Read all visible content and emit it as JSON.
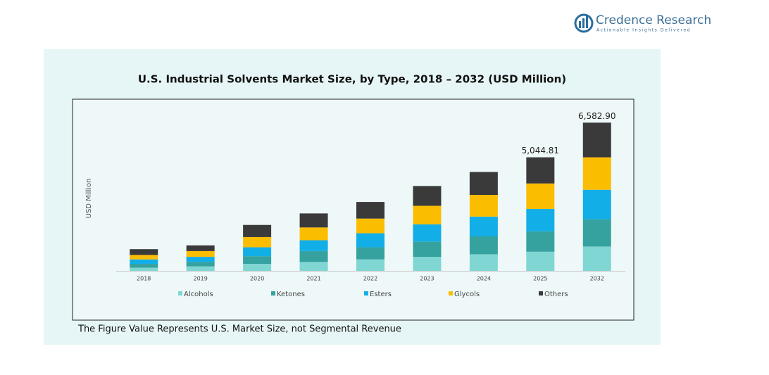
{
  "header": {
    "brand": "Credence Research",
    "tagline": "Actionable Insights Delivered"
  },
  "chart_data": {
    "type": "stacked_bar",
    "title": "U.S. Industrial Solvents Market Size, by Type, 2018 – 2032 (USD Million)",
    "y_label": "USD Million",
    "footnote": "The Figure Value Represents U.S. Market Size, not Segmental Revenue",
    "categories": [
      "2018",
      "2019",
      "2020",
      "2021",
      "2022",
      "2023",
      "2024",
      "2025",
      "2032"
    ],
    "ylim": [
      0,
      7500
    ],
    "series": [
      {
        "name": "Alcohols",
        "color": "#7fd6d3",
        "values": [
          142,
          198,
          312,
          397,
          510,
          623,
          737,
          850.2,
          1080.8
        ]
      },
      {
        "name": "Ketones",
        "color": "#35a29f",
        "values": [
          170,
          198,
          340,
          482,
          538,
          680,
          794,
          906.9,
          1211.8
        ]
      },
      {
        "name": "Esters",
        "color": "#12aee8",
        "values": [
          198,
          227,
          397,
          482,
          623,
          765,
          879,
          991.9,
          1310
        ]
      },
      {
        "name": "Glycols",
        "color": "#fbbd00",
        "values": [
          198,
          255,
          453,
          567,
          652,
          822,
          964,
          1133.6,
          1441
        ]
      },
      {
        "name": "Others",
        "color": "#3a3a3a",
        "values": [
          255,
          255,
          538,
          623,
          737,
          879,
          1020,
          1162.21,
          1539.3
        ]
      }
    ],
    "totals": [
      null,
      null,
      null,
      null,
      null,
      null,
      null,
      5044.81,
      6582.9
    ],
    "total_labels": [
      null,
      null,
      null,
      null,
      null,
      null,
      null,
      "5,044.81",
      "6,582.90"
    ]
  }
}
